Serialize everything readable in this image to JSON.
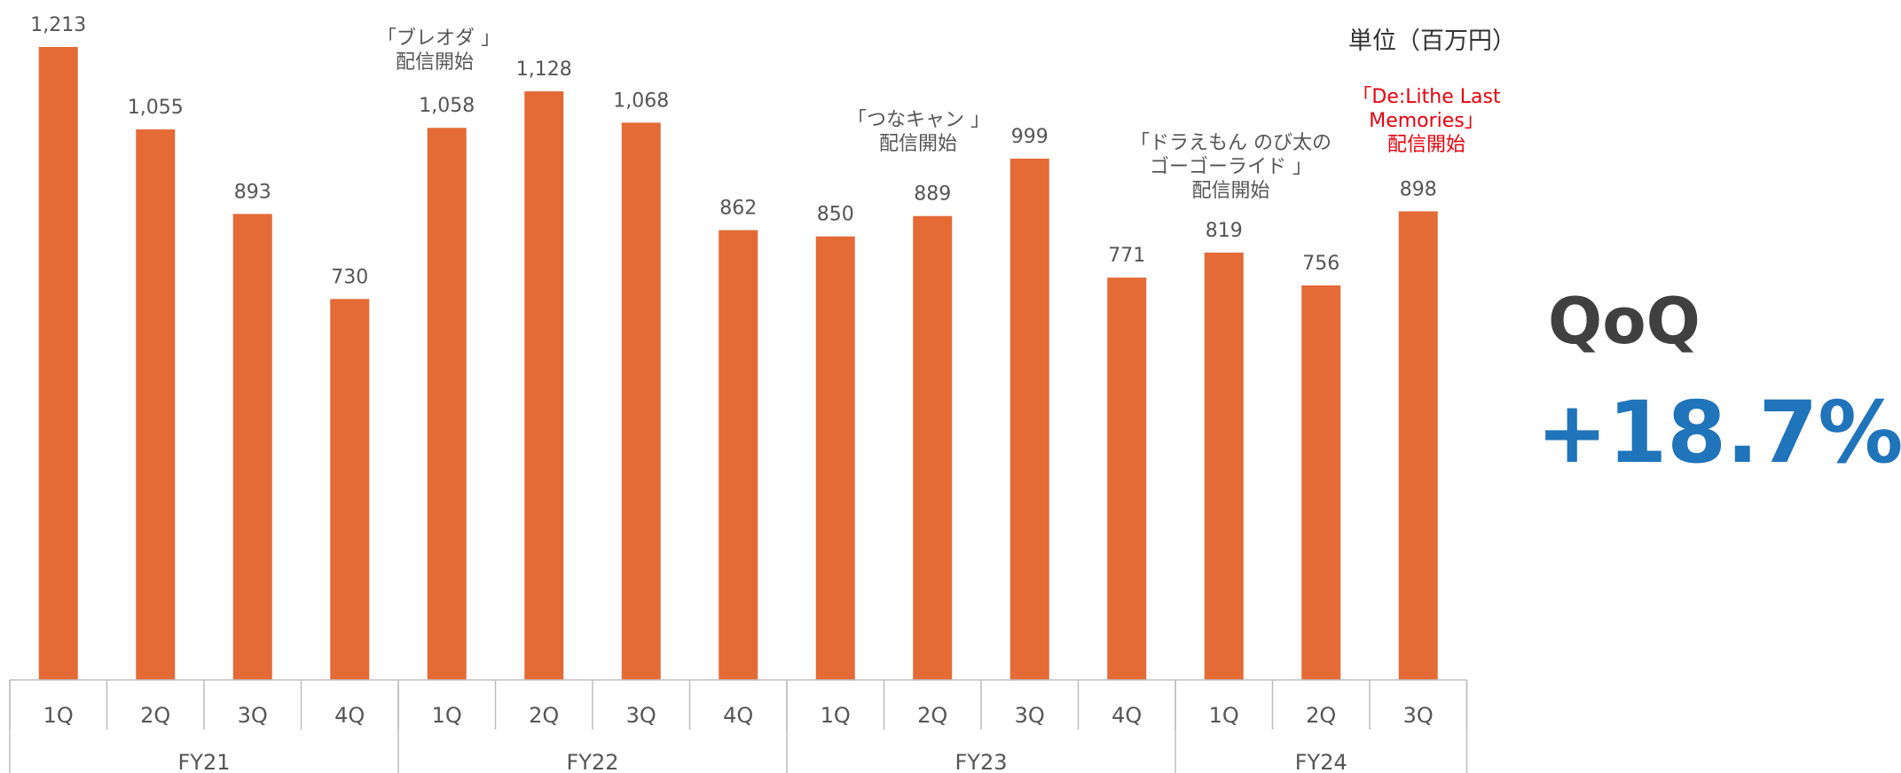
{
  "unit_label": "単位（百万円）",
  "qoq": {
    "label": "QoQ",
    "value": "+18.7%",
    "color": "#1F74BA"
  },
  "bar_color": "#E46A36",
  "annotations": [
    {
      "lines": [
        "「ブレオダ 」",
        "配信開始"
      ],
      "color": "#555555"
    },
    {
      "lines": [
        "「つなキャン 」",
        "配信開始"
      ],
      "color": "#555555"
    },
    {
      "lines": [
        "「ドラえもん のび太の",
        "ゴーゴーライド 」",
        "配信開始"
      ],
      "color": "#555555"
    },
    {
      "lines": [
        "「De:Lithe Last",
        "Memories」",
        "配信開始"
      ],
      "color": "#E8000B"
    }
  ],
  "chart_data": {
    "type": "bar",
    "groups": [
      {
        "name": "FY21",
        "categories": [
          "1Q",
          "2Q",
          "3Q",
          "4Q"
        ]
      },
      {
        "name": "FY22",
        "categories": [
          "1Q",
          "2Q",
          "3Q",
          "4Q"
        ]
      },
      {
        "name": "FY23",
        "categories": [
          "1Q",
          "2Q",
          "3Q",
          "4Q"
        ]
      },
      {
        "name": "FY24",
        "categories": [
          "1Q",
          "2Q",
          "3Q"
        ]
      }
    ],
    "values": [
      1213,
      1055,
      893,
      730,
      1058,
      1128,
      1068,
      862,
      850,
      889,
      999,
      771,
      819,
      756,
      898
    ],
    "value_labels": [
      "1,213",
      "1,055",
      "893",
      "730",
      "1,058",
      "1,128",
      "1,068",
      "862",
      "850",
      "889",
      "999",
      "771",
      "819",
      "756",
      "898"
    ],
    "ylim": [
      0,
      1213
    ],
    "grid": false,
    "legend": "none",
    "title": "",
    "xlabel": "",
    "ylabel": ""
  }
}
